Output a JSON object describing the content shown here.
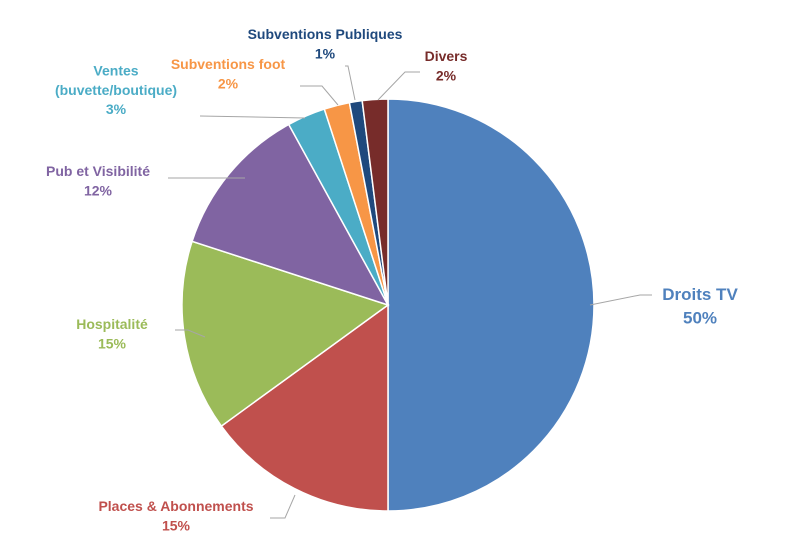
{
  "chart_data": {
    "type": "pie",
    "title": "",
    "slices": [
      {
        "label": "Droits TV",
        "value": 50,
        "display": "50%",
        "color": "#4f81bd"
      },
      {
        "label": "Places & Abonnements",
        "value": 15,
        "display": "15%",
        "color": "#c0504d"
      },
      {
        "label": "Hospitalité",
        "value": 15,
        "display": "15%",
        "color": "#9bbb59"
      },
      {
        "label": "Pub et Visibilité",
        "value": 12,
        "display": "12%",
        "color": "#8064a2"
      },
      {
        "label": "Ventes (buvette/boutique)",
        "lines": [
          "Ventes",
          "(buvette/boutique)"
        ],
        "value": 3,
        "display": "3%",
        "color": "#4bacc6"
      },
      {
        "label": "Subventions foot",
        "value": 2,
        "display": "2%",
        "color": "#f79646"
      },
      {
        "label": "Subventions Publiques",
        "value": 1,
        "display": "1%",
        "color": "#1f497d"
      },
      {
        "label": "Divers",
        "value": 2,
        "display": "2%",
        "color": "#772c2a"
      }
    ],
    "legend": "none",
    "data_labels": "outside with leader lines"
  }
}
